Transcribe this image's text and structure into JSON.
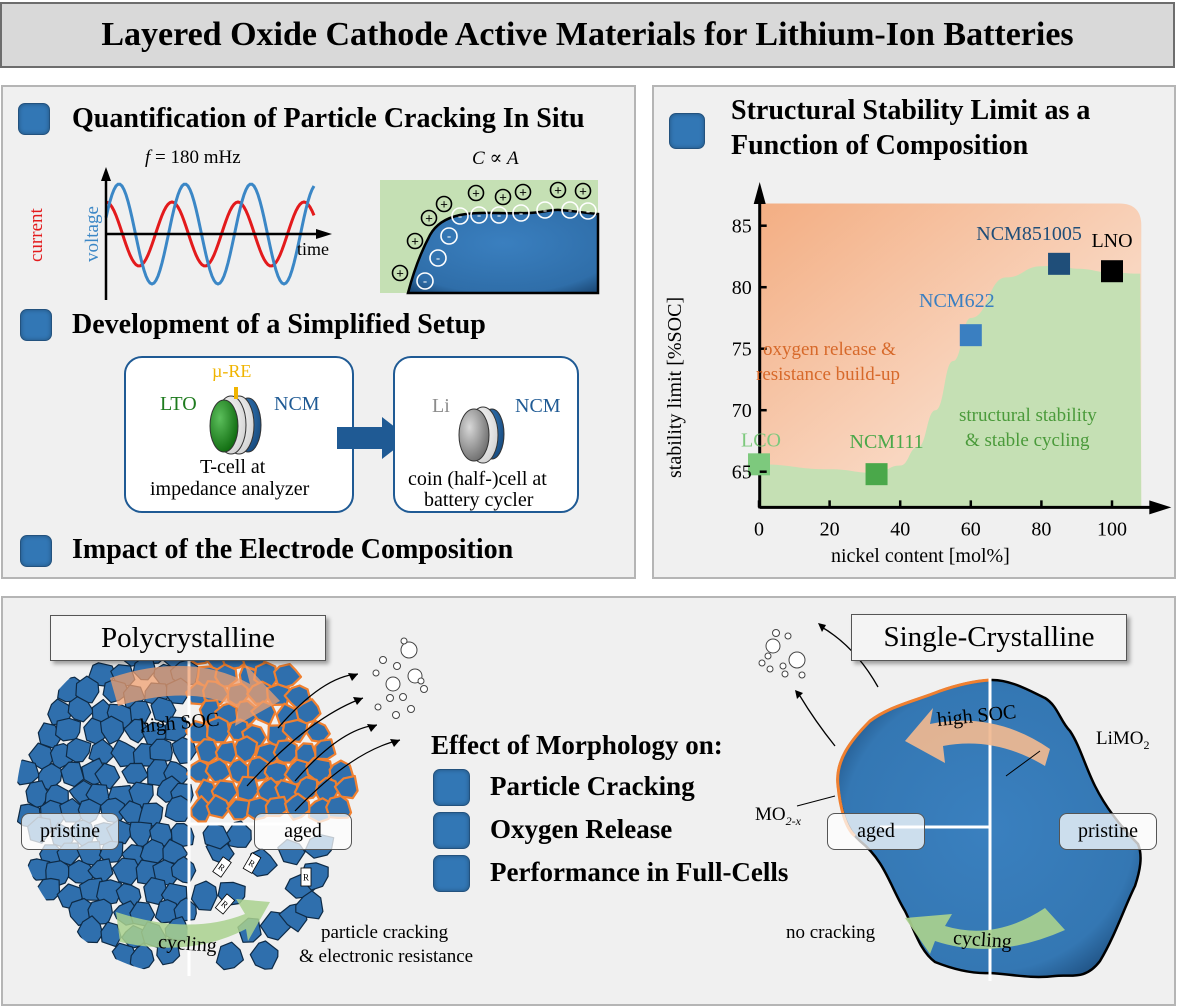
{
  "title": "Layered Oxide Cathode Active Materials for Lithium-Ion Batteries",
  "colors": {
    "accent_blue": "#3277b5",
    "current_red": "#e31a1c",
    "voltage_blue": "#3b87c6",
    "orange_region": "#f4b88f",
    "green_region": "#c5e0b4",
    "lco_green": "#7dc97d",
    "ncm111_green": "#4aa84a",
    "ncm622_blue": "#3a7fc1",
    "ncm851005_blue": "#1f4e79",
    "lno_black": "#000000"
  },
  "panel_top_left": {
    "section1": {
      "heading": "Quantification of Particle Cracking In Situ",
      "freq_label_italic": "f",
      "freq_label_rest": " = 180 mHz",
      "formula_c": "C",
      "formula_prop": " ∝ ",
      "formula_a": "A",
      "current_label": "current",
      "voltage_label": "voltage",
      "time_label": "time",
      "plus_sign": "+",
      "minus_sign": "-"
    },
    "section2": {
      "heading": "Development of a Simplified Setup",
      "cell1": {
        "re_label": "µ-RE",
        "left_label": "LTO",
        "right_label": "NCM",
        "caption_line1": "T-cell at",
        "caption_line2": "impedance analyzer"
      },
      "cell2": {
        "left_label": "Li",
        "right_label": "NCM",
        "caption_line1": "coin (half-)cell at",
        "caption_line2": "battery cycler"
      }
    },
    "section3": {
      "heading": "Impact of the Electrode Composition"
    }
  },
  "panel_top_right": {
    "heading_line1": "Structural Stability Limit as a",
    "heading_line2": "Function of Composition"
  },
  "chart_data": {
    "type": "scatter",
    "title": "Structural Stability Limit as a Function of Composition",
    "xlabel": "nickel content [mol%]",
    "ylabel": "stability limit [%SOC]",
    "xlim": [
      -10,
      110
    ],
    "ylim": [
      62,
      87
    ],
    "xticks": [
      "0",
      "20",
      "40",
      "60",
      "80",
      "100"
    ],
    "xtick_values": [
      0,
      20,
      40,
      60,
      80,
      100
    ],
    "yticks": [
      "65",
      "70",
      "75",
      "80",
      "85"
    ],
    "ytick_values": [
      65,
      70,
      75,
      80,
      85
    ],
    "grid": false,
    "points": [
      {
        "name": "LCO",
        "x": 0,
        "y": 65.6,
        "color": "#7dc97d"
      },
      {
        "name": "NCM111",
        "x": 33.3,
        "y": 64.8,
        "color": "#4aa84a"
      },
      {
        "name": "NCM622",
        "x": 60,
        "y": 76.1,
        "color": "#3a7fc1"
      },
      {
        "name": "NCM851005",
        "x": 85,
        "y": 81.9,
        "color": "#1f4e79"
      },
      {
        "name": "LNO",
        "x": 100,
        "y": 81.3,
        "color": "#000000"
      }
    ],
    "boundary": {
      "x": [
        -10,
        0,
        20,
        33,
        40,
        45,
        50,
        55,
        60,
        70,
        80,
        85,
        90,
        100,
        108
      ],
      "y": [
        65.5,
        65.6,
        65.2,
        64.9,
        65.5,
        67,
        70,
        74,
        77.5,
        80.8,
        81.7,
        81.8,
        81.5,
        81.2,
        81.1
      ]
    },
    "region_labels": {
      "unstable_line1": "oxygen release &",
      "unstable_line2": "resistance build-up",
      "stable_line1": "structural stability",
      "stable_line2": "& stable cycling"
    }
  },
  "panel_bottom": {
    "poly": {
      "title": "Polycrystalline",
      "high_soc": "high SOC",
      "cycling": "cycling",
      "pristine": "pristine",
      "aged": "aged",
      "resistor": "R",
      "crack_line1": "particle cracking",
      "crack_line2": "& electronic resistance"
    },
    "center": {
      "heading": "Effect of Morphology on:",
      "items": [
        "Particle Cracking",
        "Oxygen Release",
        "Performance in Full-Cells"
      ]
    },
    "single": {
      "title": "Single-Crystalline",
      "high_soc": "high SOC",
      "cycling": "cycling",
      "aged": "aged",
      "pristine": "pristine",
      "limo2_main": "LiMO",
      "limo2_sub": "2",
      "mo2x_main": "MO",
      "mo2x_sub": "2-x",
      "no_cracking": "no cracking"
    }
  }
}
